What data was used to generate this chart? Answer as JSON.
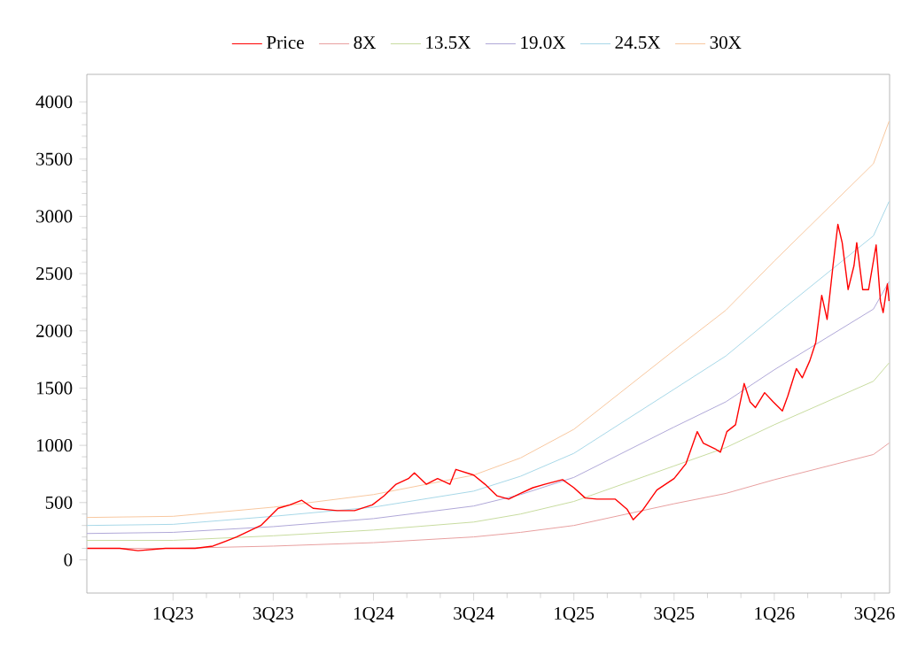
{
  "chart_data": {
    "type": "line",
    "legend": "top",
    "grid": false,
    "xlim": [
      "2022-07-27",
      "2026-07-29"
    ],
    "ylim": [
      -290,
      4240
    ],
    "xticks": [
      {
        "value": "2023-01-01",
        "label": "1Q23"
      },
      {
        "value": "2023-07-01",
        "label": "3Q23"
      },
      {
        "value": "2024-01-01",
        "label": "1Q24"
      },
      {
        "value": "2024-07-01",
        "label": "3Q24"
      },
      {
        "value": "2025-01-01",
        "label": "1Q25"
      },
      {
        "value": "2025-07-01",
        "label": "3Q25"
      },
      {
        "value": "2026-01-01",
        "label": "1Q26"
      },
      {
        "value": "2026-07-01",
        "label": "3Q26"
      }
    ],
    "yticks": [
      0,
      500,
      1000,
      1500,
      2000,
      2500,
      3000,
      3500,
      4000
    ],
    "series": [
      {
        "name": "Price",
        "color": "#ff0000",
        "x": [
          "2022-07-28",
          "2022-09-26",
          "2022-10-29",
          "2022-12-18",
          "2023-02-11",
          "2023-03-13",
          "2023-04-26",
          "2023-06-09",
          "2023-07-10",
          "2023-08-01",
          "2023-08-23",
          "2023-09-13",
          "2023-10-05",
          "2023-10-27",
          "2023-11-28",
          "2023-12-30",
          "2024-01-21",
          "2024-02-12",
          "2024-03-04",
          "2024-03-15",
          "2024-04-06",
          "2024-04-27",
          "2024-05-19",
          "2024-05-30",
          "2024-07-01",
          "2024-07-22",
          "2024-08-13",
          "2024-09-04",
          "2024-09-26",
          "2024-10-18",
          "2024-11-09",
          "2024-12-11",
          "2025-01-01",
          "2025-01-22",
          "2025-02-13",
          "2025-03-16",
          "2025-04-07",
          "2025-04-18",
          "2025-05-04",
          "2025-05-31",
          "2025-07-01",
          "2025-07-23",
          "2025-08-13",
          "2025-08-24",
          "2025-09-15",
          "2025-09-25",
          "2025-10-06",
          "2025-10-22",
          "2025-11-07",
          "2025-11-18",
          "2025-11-28",
          "2025-12-14",
          "2025-12-30",
          "2026-01-16",
          "2026-01-26",
          "2026-02-11",
          "2026-02-22",
          "2026-03-05",
          "2026-03-16",
          "2026-03-27",
          "2026-04-06",
          "2026-04-17",
          "2026-04-26",
          "2026-05-03",
          "2026-05-14",
          "2026-05-25",
          "2026-05-30",
          "2026-06-10",
          "2026-06-21",
          "2026-07-04",
          "2026-07-12",
          "2026-07-17",
          "2026-07-25",
          "2026-07-28"
        ],
        "values": [
          100,
          100,
          80,
          100,
          100,
          120,
          200,
          300,
          450,
          480,
          520,
          450,
          440,
          430,
          430,
          480,
          560,
          660,
          710,
          760,
          660,
          710,
          660,
          790,
          740,
          660,
          560,
          530,
          580,
          630,
          660,
          700,
          630,
          540,
          530,
          530,
          440,
          350,
          430,
          610,
          710,
          840,
          1120,
          1020,
          970,
          940,
          1120,
          1180,
          1540,
          1380,
          1330,
          1460,
          1380,
          1300,
          1430,
          1670,
          1590,
          1740,
          1900,
          2310,
          2100,
          2570,
          2930,
          2770,
          2360,
          2570,
          2770,
          2360,
          2360,
          2750,
          2260,
          2160,
          2410,
          2260
        ]
      },
      {
        "name": "8X",
        "color": "#e8a0a0",
        "x": [
          "2022-07-27",
          "2023-01-01",
          "2023-07-01",
          "2024-01-01",
          "2024-07-01",
          "2024-09-26",
          "2025-01-01",
          "2025-07-01",
          "2025-10-04",
          "2026-01-01",
          "2026-06-30",
          "2026-07-28"
        ],
        "values": [
          100,
          100,
          120,
          150,
          200,
          240,
          300,
          490,
          580,
          700,
          920,
          1020
        ]
      },
      {
        "name": "13.5X",
        "color": "#c8dca0",
        "x": [
          "2022-07-27",
          "2023-01-01",
          "2023-07-01",
          "2024-01-01",
          "2024-07-01",
          "2024-09-26",
          "2025-01-01",
          "2025-07-01",
          "2025-10-04",
          "2026-01-01",
          "2026-06-30",
          "2026-07-28"
        ],
        "values": [
          170,
          170,
          210,
          260,
          330,
          400,
          510,
          820,
          980,
          1180,
          1560,
          1720
        ]
      },
      {
        "name": "19.0X",
        "color": "#b0a8d8",
        "x": [
          "2022-07-27",
          "2023-01-01",
          "2023-07-01",
          "2024-01-01",
          "2024-07-01",
          "2024-09-26",
          "2025-01-01",
          "2025-07-01",
          "2025-10-04",
          "2026-01-01",
          "2026-06-30",
          "2026-07-28"
        ],
        "values": [
          230,
          240,
          290,
          360,
          470,
          570,
          720,
          1160,
          1380,
          1660,
          2190,
          2430
        ]
      },
      {
        "name": "24.5X",
        "color": "#a8d8e8",
        "x": [
          "2022-07-27",
          "2023-01-01",
          "2023-07-01",
          "2024-01-01",
          "2024-07-01",
          "2024-09-26",
          "2025-01-01",
          "2025-07-01",
          "2025-10-04",
          "2026-01-01",
          "2026-06-30",
          "2026-07-28"
        ],
        "values": [
          300,
          310,
          380,
          460,
          600,
          730,
          930,
          1490,
          1780,
          2130,
          2830,
          3130
        ]
      },
      {
        "name": "30X",
        "color": "#f8c8a0",
        "x": [
          "2022-07-27",
          "2023-01-01",
          "2023-07-01",
          "2024-01-01",
          "2024-07-01",
          "2024-09-26",
          "2025-01-01",
          "2025-07-01",
          "2025-10-04",
          "2026-01-01",
          "2026-06-30",
          "2026-07-28"
        ],
        "values": [
          370,
          380,
          460,
          570,
          740,
          890,
          1140,
          1830,
          2180,
          2610,
          3460,
          3830
        ]
      }
    ]
  }
}
